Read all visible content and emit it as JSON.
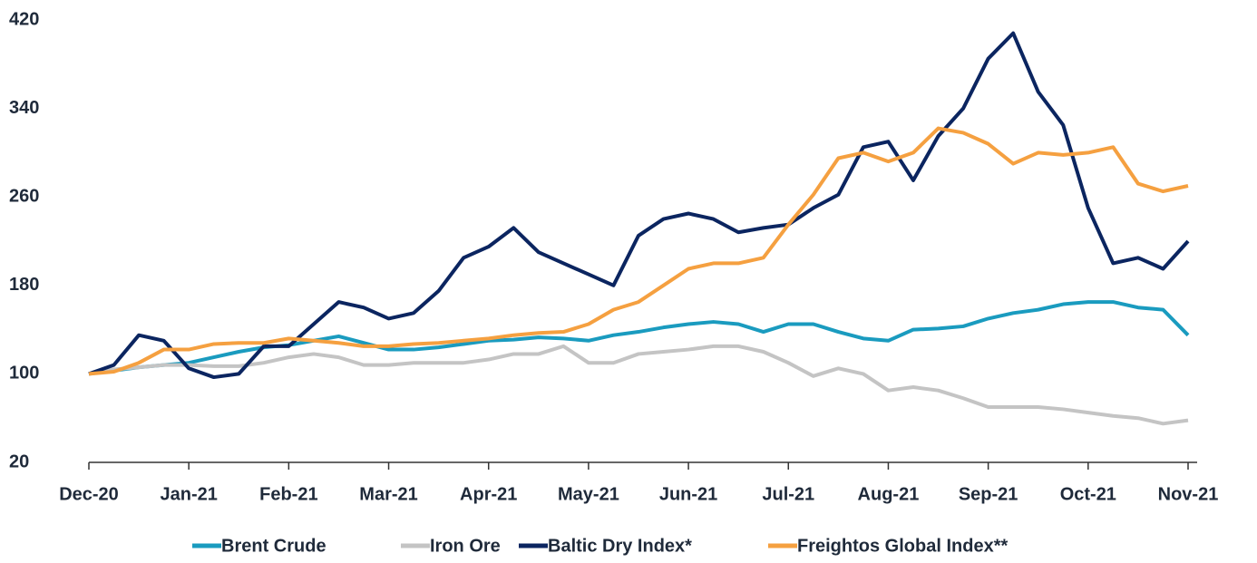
{
  "chart_data": {
    "type": "line",
    "categories": [
      "Dec-20",
      null,
      null,
      null,
      "Jan-21",
      null,
      null,
      null,
      "Feb-21",
      null,
      null,
      null,
      "Mar-21",
      null,
      null,
      null,
      "Apr-21",
      null,
      null,
      null,
      "May-21",
      null,
      null,
      null,
      "Jun-21",
      null,
      null,
      null,
      "Jul-21",
      null,
      null,
      null,
      "Aug-21",
      null,
      null,
      null,
      "Sep-21",
      null,
      null,
      null,
      "Oct-21",
      null,
      null,
      null,
      "Nov-21"
    ],
    "series": [
      {
        "name": "Brent Crude",
        "color": "#1a9bbf",
        "values": [
          100,
          103,
          106,
          108,
          110,
          115,
          120,
          124,
          126,
          130,
          134,
          128,
          122,
          122,
          124,
          127,
          130,
          131,
          133,
          132,
          130,
          135,
          138,
          142,
          145,
          147,
          145,
          138,
          145,
          145,
          138,
          132,
          130,
          140,
          141,
          143,
          150,
          155,
          158,
          163,
          165,
          165,
          160,
          158,
          135
        ]
      },
      {
        "name": "Iron Ore",
        "color": "#c4c4c4",
        "values": [
          100,
          104,
          106,
          108,
          108,
          107,
          107,
          110,
          115,
          118,
          115,
          108,
          108,
          110,
          110,
          110,
          113,
          118,
          118,
          125,
          110,
          110,
          118,
          120,
          122,
          125,
          125,
          120,
          110,
          98,
          105,
          100,
          85,
          88,
          85,
          78,
          70,
          70,
          70,
          68,
          65,
          62,
          60,
          55,
          58
        ]
      },
      {
        "name": "Baltic Dry Index*",
        "color": "#0b2560",
        "values": [
          100,
          108,
          135,
          130,
          105,
          97,
          100,
          125,
          125,
          145,
          165,
          160,
          150,
          155,
          175,
          205,
          215,
          232,
          210,
          200,
          190,
          180,
          225,
          240,
          245,
          240,
          228,
          232,
          235,
          250,
          262,
          305,
          310,
          275,
          315,
          340,
          385,
          408,
          355,
          325,
          250,
          200,
          205,
          195,
          220
        ]
      },
      {
        "name": "Freightos Global Index**",
        "color": "#f5a040",
        "values": [
          100,
          102,
          110,
          122,
          122,
          127,
          128,
          128,
          132,
          130,
          128,
          125,
          125,
          127,
          128,
          130,
          132,
          135,
          137,
          138,
          145,
          158,
          165,
          180,
          195,
          200,
          200,
          205,
          235,
          262,
          295,
          300,
          292,
          300,
          322,
          318,
          308,
          290,
          300,
          298,
          300,
          305,
          272,
          265,
          270
        ]
      }
    ],
    "ylim": [
      20,
      420
    ],
    "yticks": [
      20,
      100,
      180,
      260,
      340,
      420
    ],
    "legend": "bottom"
  }
}
